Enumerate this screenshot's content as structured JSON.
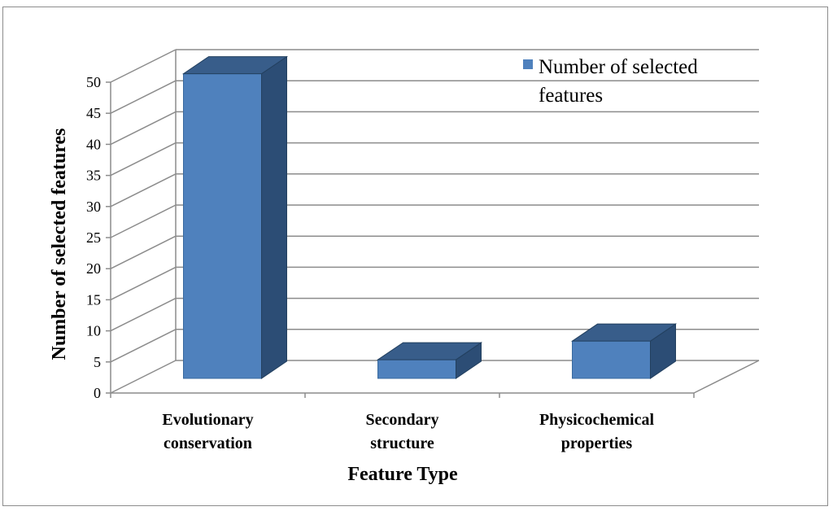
{
  "chart_data": {
    "type": "bar",
    "title": "",
    "xlabel": "Feature Type",
    "ylabel": "Number of selected features",
    "categories": [
      [
        "Evolutionary",
        "conservation"
      ],
      [
        "Secondary",
        "structure"
      ],
      [
        "Physicochemical",
        "properties"
      ]
    ],
    "series": [
      {
        "name": "Number of selected features",
        "values": [
          49,
          3,
          6
        ]
      }
    ],
    "ylim": [
      0,
      50
    ],
    "yticks": [
      0,
      5,
      10,
      15,
      20,
      25,
      30,
      35,
      40,
      45,
      50
    ],
    "grid": true,
    "legend": "top-right",
    "three_d": true,
    "colors": {
      "bar_front": "#4f81bd",
      "bar_side": "#2c4d75",
      "bar_top": "#385d8a",
      "grid": "#8c8c8c"
    }
  },
  "legend": {
    "line1": "Number of selected",
    "line2": "features"
  }
}
